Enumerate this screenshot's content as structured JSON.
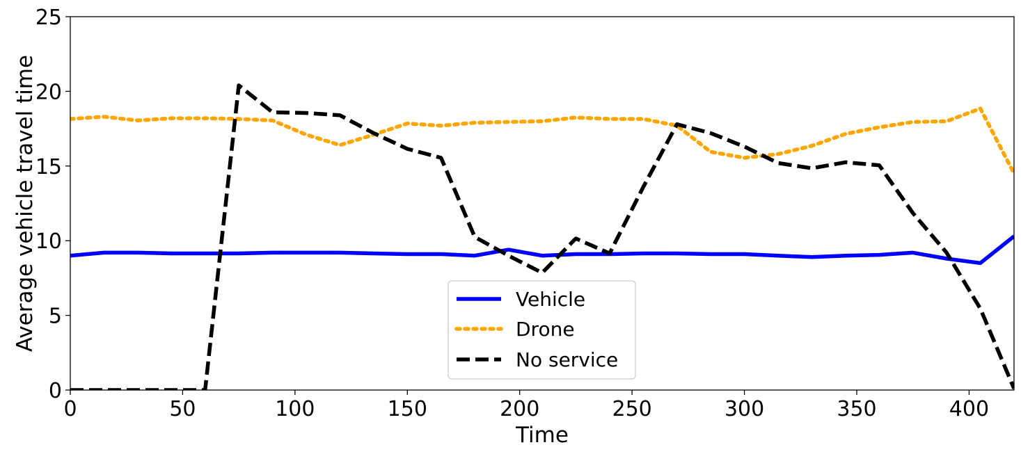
{
  "chart_data": {
    "type": "line",
    "xlabel": "Time",
    "ylabel": "Average vehicle travel time",
    "xlim": [
      0,
      420
    ],
    "ylim": [
      0,
      25
    ],
    "xticks": [
      0,
      50,
      100,
      150,
      200,
      250,
      300,
      350,
      400
    ],
    "yticks": [
      0,
      5,
      10,
      15,
      20,
      25
    ],
    "grid": false,
    "legend_position": "lower-center",
    "series": [
      {
        "name": "Vehicle",
        "color": "#0000ff",
        "style": "solid",
        "x": [
          0,
          15,
          30,
          45,
          60,
          75,
          90,
          105,
          120,
          135,
          150,
          165,
          180,
          195,
          210,
          225,
          240,
          255,
          270,
          285,
          300,
          315,
          330,
          345,
          360,
          375,
          390,
          405,
          420
        ],
        "y": [
          9.0,
          9.2,
          9.2,
          9.15,
          9.15,
          9.15,
          9.2,
          9.2,
          9.2,
          9.15,
          9.1,
          9.1,
          9.0,
          9.4,
          9.0,
          9.1,
          9.1,
          9.15,
          9.15,
          9.1,
          9.1,
          9.0,
          8.9,
          9.0,
          9.05,
          9.2,
          8.8,
          8.5,
          10.3
        ]
      },
      {
        "name": "Drone",
        "color": "#ffa500",
        "style": "dotted",
        "x": [
          0,
          15,
          30,
          45,
          60,
          75,
          90,
          105,
          120,
          135,
          150,
          165,
          180,
          195,
          210,
          225,
          240,
          255,
          270,
          285,
          300,
          315,
          330,
          345,
          360,
          375,
          390,
          405,
          420
        ],
        "y": [
          18.15,
          18.3,
          18.05,
          18.2,
          18.2,
          18.15,
          18.05,
          17.1,
          16.4,
          17.1,
          17.85,
          17.7,
          17.9,
          17.95,
          18.0,
          18.25,
          18.15,
          18.15,
          17.7,
          15.95,
          15.55,
          15.8,
          16.35,
          17.15,
          17.6,
          17.95,
          18.0,
          18.85,
          14.5
        ]
      },
      {
        "name": "No service",
        "color": "#000000",
        "style": "dashed",
        "x": [
          0,
          15,
          30,
          45,
          60,
          75,
          90,
          105,
          120,
          135,
          150,
          165,
          180,
          195,
          210,
          225,
          240,
          255,
          270,
          285,
          300,
          315,
          330,
          345,
          360,
          375,
          390,
          405,
          420
        ],
        "y": [
          0,
          0,
          0,
          0,
          0,
          20.4,
          18.6,
          18.55,
          18.4,
          17.2,
          16.15,
          15.55,
          10.25,
          9.0,
          7.85,
          10.15,
          9.15,
          13.6,
          17.8,
          17.2,
          16.3,
          15.2,
          14.85,
          15.25,
          15.05,
          11.85,
          9.2,
          5.45,
          0.1
        ]
      }
    ]
  }
}
